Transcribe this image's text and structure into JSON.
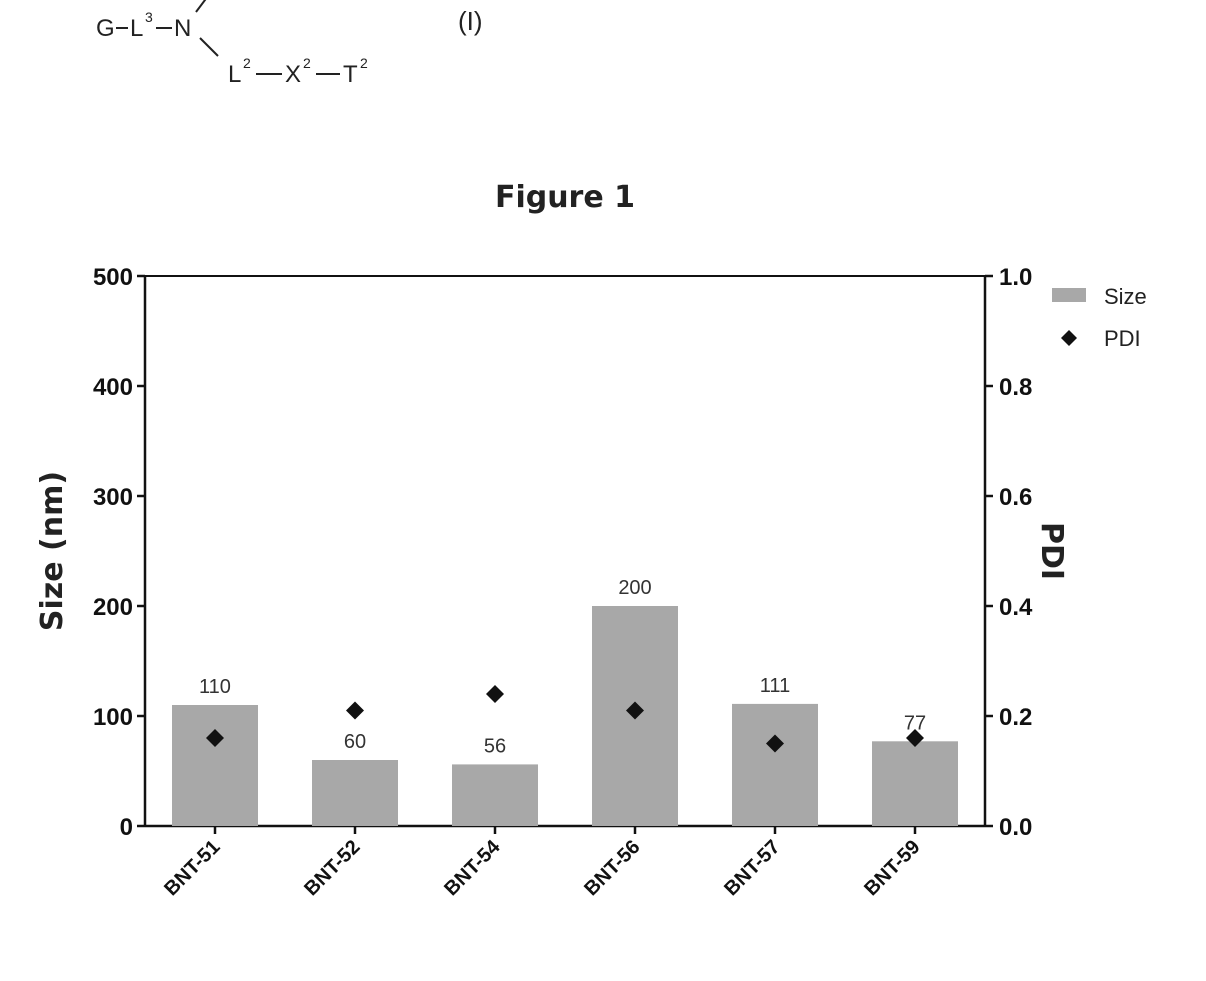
{
  "formula": {
    "line1_parts": [
      "G",
      "L",
      "3",
      "N"
    ],
    "label": "(I)",
    "line2_parts": [
      "L",
      "2",
      "X",
      "2",
      "T",
      "2"
    ]
  },
  "figure_title": "Figure 1",
  "chart_data": {
    "type": "bar",
    "categories": [
      "BNT-51",
      "BNT-52",
      "BNT-54",
      "BNT-56",
      "BNT-57",
      "BNT-59"
    ],
    "series": [
      {
        "name": "Size",
        "kind": "bar",
        "axis": "left",
        "values": [
          110,
          60,
          56,
          200,
          111,
          77
        ],
        "color": "#a8a8a8"
      },
      {
        "name": "PDI",
        "kind": "marker",
        "marker": "diamond",
        "axis": "right",
        "values": [
          0.16,
          0.21,
          0.24,
          0.21,
          0.15,
          0.16
        ],
        "color": "#111111"
      }
    ],
    "data_labels": [
      "110",
      "60",
      "56",
      "200",
      "111",
      "77"
    ],
    "ylabel": "Size (nm)",
    "ylim": [
      0,
      500
    ],
    "yticks": [
      "0",
      "100",
      "200",
      "300",
      "400",
      "500"
    ],
    "y2label": "PDI",
    "y2lim": [
      0,
      1.0
    ],
    "y2ticks": [
      "0.0",
      "0.2",
      "0.4",
      "0.6",
      "0.8",
      "1.0"
    ],
    "grid": false,
    "legend": "top-right",
    "legend_entries": [
      "Size",
      "PDI"
    ]
  }
}
